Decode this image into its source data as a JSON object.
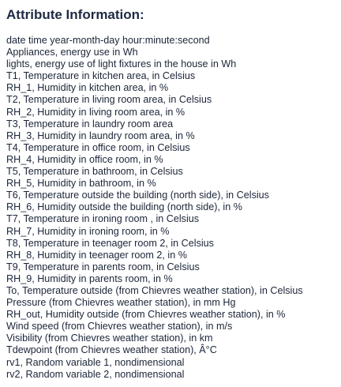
{
  "heading": "Attribute Information:",
  "attributes": [
    "date time year-month-day hour:minute:second",
    "Appliances, energy use in Wh",
    "lights, energy use of light fixtures in the house in Wh",
    "T1, Temperature in kitchen area, in Celsius",
    "RH_1, Humidity in kitchen area, in %",
    "T2, Temperature in living room area, in Celsius",
    "RH_2, Humidity in living room area, in %",
    "T3, Temperature in laundry room area",
    "RH_3, Humidity in laundry room area, in %",
    "T4, Temperature in office room, in Celsius",
    "RH_4, Humidity in office room, in %",
    "T5, Temperature in bathroom, in Celsius",
    "RH_5, Humidity in bathroom, in %",
    "T6, Temperature outside the building (north side), in Celsius",
    "RH_6, Humidity outside the building (north side), in %",
    "T7, Temperature in ironing room , in Celsius",
    "RH_7, Humidity in ironing room, in %",
    "T8, Temperature in teenager room 2, in Celsius",
    "RH_8, Humidity in teenager room 2, in %",
    "T9, Temperature in parents room, in Celsius",
    "RH_9, Humidity in parents room, in %",
    "To, Temperature outside (from Chievres weather station), in Celsius",
    "Pressure (from Chievres weather station), in mm Hg",
    "RH_out, Humidity outside (from Chievres weather station), in %",
    "Wind speed (from Chievres weather station), in m/s",
    "Visibility (from Chievres weather station), in km",
    "Tdewpoint (from Chievres weather station), Â°C",
    "rv1, Random variable 1, nondimensional",
    "rv2, Random variable 2, nondimensional"
  ]
}
